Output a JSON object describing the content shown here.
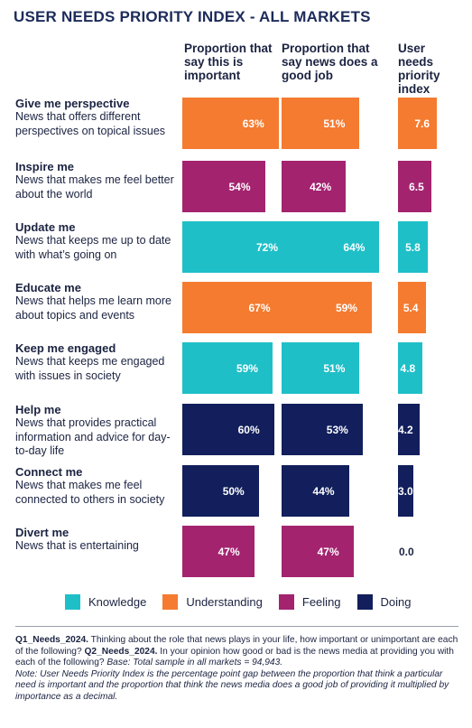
{
  "title": "USER NEEDS PRIORITY INDEX - ALL MARKETS",
  "columns": [
    "Proportion that say this is important",
    "Proportion that say news does a good job",
    "User needs priority index"
  ],
  "colors": {
    "Knowledge": "#1fbfc8",
    "Understanding": "#f47b30",
    "Feeling": "#a3236f",
    "Doing": "#121f5c"
  },
  "chart_data": {
    "type": "bar",
    "categories": [
      "Give me perspective",
      "Inspire me",
      "Update me",
      "Educate me",
      "Keep me engaged",
      "Help me",
      "Connect me",
      "Divert me"
    ],
    "descriptions": [
      "News that offers different perspectives on topical issues",
      "News that makes me feel better about the world",
      "News that keeps me up to date with what’s going on",
      "News that helps me learn more about topics and events",
      "News that keeps me engaged with issues in society",
      "News that provides practical information and advice for day-to-day life",
      "News that makes me feel connected to others in society",
      "News that is entertaining"
    ],
    "groups": [
      "Understanding",
      "Feeling",
      "Knowledge",
      "Understanding",
      "Knowledge",
      "Doing",
      "Doing",
      "Feeling"
    ],
    "series": [
      {
        "name": "Proportion that say this is important",
        "values": [
          63,
          54,
          72,
          67,
          59,
          60,
          50,
          47
        ],
        "labels": [
          "63%",
          "54%",
          "72%",
          "67%",
          "59%",
          "60%",
          "50%",
          "47%"
        ]
      },
      {
        "name": "Proportion that say news does a good job",
        "values": [
          51,
          42,
          64,
          59,
          51,
          53,
          44,
          47
        ],
        "labels": [
          "51%",
          "42%",
          "64%",
          "59%",
          "51%",
          "53%",
          "44%",
          "47%"
        ]
      },
      {
        "name": "User needs priority index",
        "values": [
          7.6,
          6.5,
          5.8,
          5.4,
          4.8,
          4.2,
          3.0,
          0.0
        ],
        "labels": [
          "7.6",
          "6.5",
          "5.8",
          "5.4",
          "4.8",
          "4.2",
          "3.0",
          "0.0"
        ]
      }
    ],
    "legend": [
      "Knowledge",
      "Understanding",
      "Feeling",
      "Doing"
    ],
    "legend_position": "bottom"
  },
  "footnote": {
    "q1_label": "Q1_Needs_2024.",
    "q1_text": " Thinking about the role that news plays in your life, how important or unimportant are each of the following? ",
    "q2_label": "Q2_Needs_2024.",
    "q2_text": " In your opinion how good or bad is the news media at providing you with each of the following? ",
    "base": "Base: Total sample in all markets = 94,943.",
    "note": "Note: User Needs Priority Index is the percentage point gap between the proportion that think a particular need is important and the proportion that think the news media does a good job of providing it multiplied by importance as a decimal."
  }
}
